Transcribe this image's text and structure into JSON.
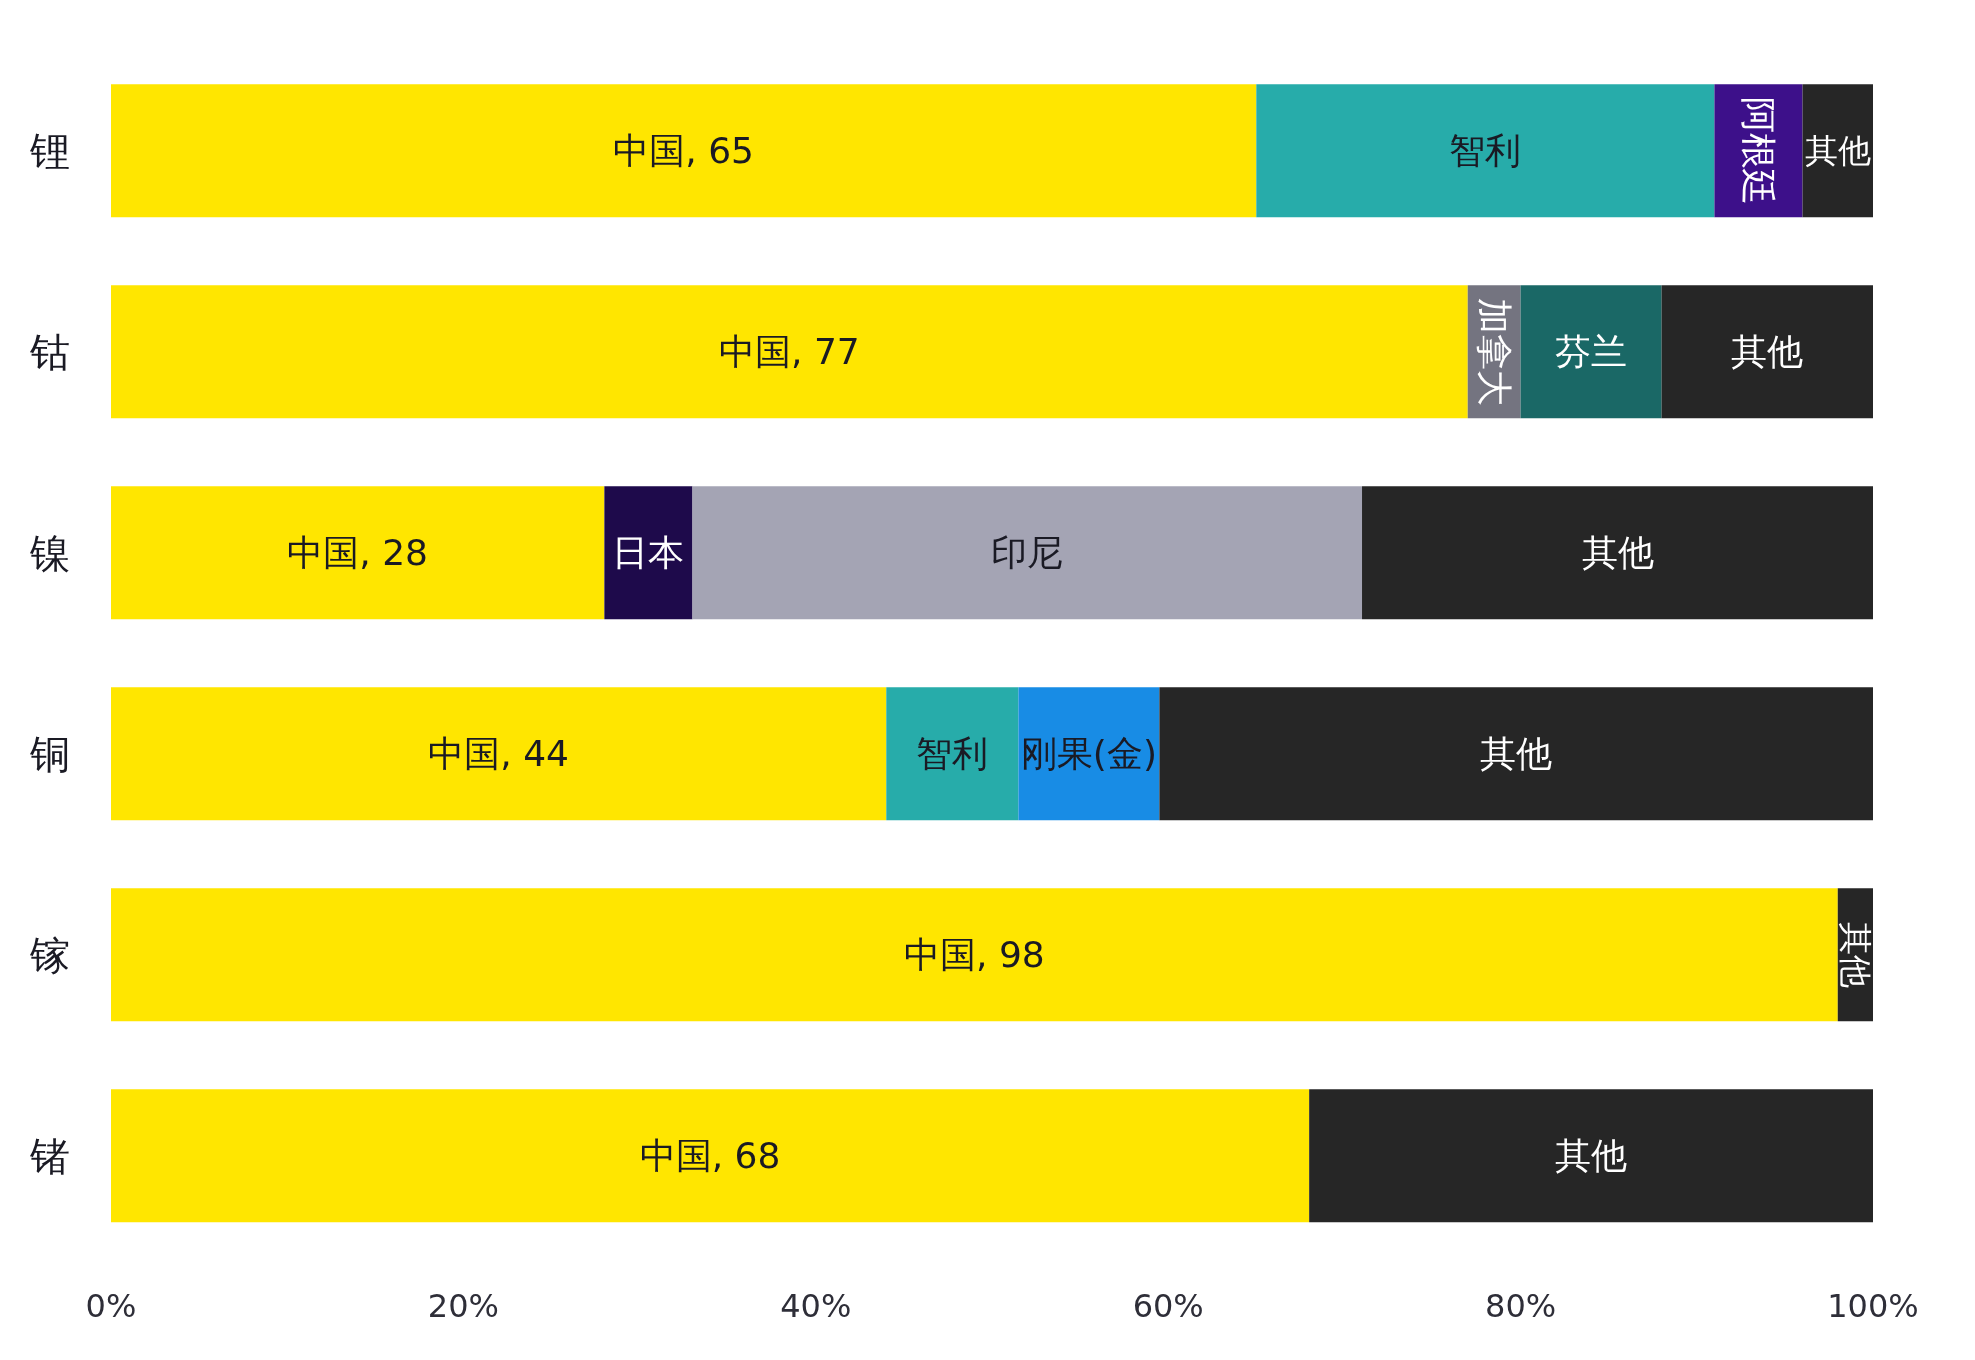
{
  "chart_data": {
    "type": "bar",
    "orientation": "horizontal",
    "stacked": true,
    "categories": [
      "锂",
      "钴",
      "镍",
      "铜",
      "镓",
      "锗"
    ],
    "series": [
      {
        "color": "#ffe600",
        "values": [
          65,
          77,
          28,
          44,
          98,
          68
        ],
        "value_labels": [
          "中国, 65",
          "中国, 77",
          "中国, 28",
          "中国, 44",
          "中国, 98",
          "中国, 68"
        ]
      },
      {
        "name": "智利",
        "color": "#27acaa",
        "values": [
          26,
          null,
          null,
          7.5,
          null,
          null
        ]
      },
      {
        "name": "阿根廷",
        "color": "#3d108a",
        "values": [
          5,
          null,
          null,
          null,
          null,
          null
        ]
      },
      {
        "name": "加拿大",
        "color": "#747480",
        "values": [
          null,
          3,
          null,
          null,
          null,
          null
        ]
      },
      {
        "name": "芬兰",
        "color": "#1a6866",
        "values": [
          null,
          8,
          null,
          null,
          null,
          null
        ]
      },
      {
        "name": "日本",
        "color": "#1e0a4b",
        "values": [
          null,
          null,
          5,
          null,
          null,
          null
        ]
      },
      {
        "name": "印尼",
        "color": "#a4a4b4",
        "values": [
          null,
          null,
          38,
          null,
          null,
          null
        ]
      },
      {
        "name": "刚果(金)",
        "color": "#188ce5",
        "values": [
          null,
          null,
          null,
          8,
          null,
          null
        ]
      },
      {
        "name": "其他",
        "color": "#262626",
        "values": [
          4,
          12,
          29,
          40.5,
          2,
          32
        ]
      }
    ],
    "xlim": [
      0,
      100
    ],
    "xticks": [
      {
        "value": 0,
        "label": "0%"
      },
      {
        "value": 20,
        "label": "20%"
      },
      {
        "value": 40,
        "label": "40%"
      },
      {
        "value": 60,
        "label": "60%"
      },
      {
        "value": 80,
        "label": "80%"
      },
      {
        "value": 100,
        "label": "100%"
      }
    ]
  }
}
